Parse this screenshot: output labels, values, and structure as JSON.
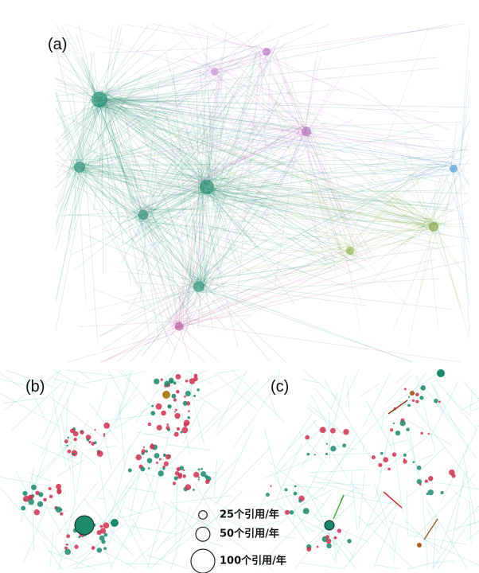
{
  "panels": {
    "a": "(a)",
    "b": "(b)",
    "c": "(c)"
  },
  "legend": {
    "items": [
      {
        "value": 25,
        "label": "25个引用/年"
      },
      {
        "value": 50,
        "label": "50个引用/年"
      },
      {
        "value": 100,
        "label": "100个引用/年"
      }
    ]
  }
}
